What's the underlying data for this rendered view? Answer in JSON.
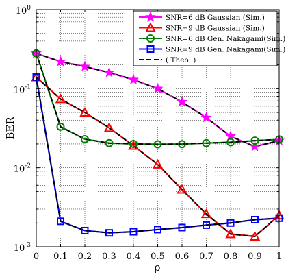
{
  "chart_data": {
    "type": "line",
    "xlabel": "ρ",
    "ylabel": "BER",
    "xlim": [
      0,
      1
    ],
    "ylim": [
      0.001,
      1
    ],
    "yscale": "log",
    "grid": true,
    "legend_position": "top-right",
    "x_ticks": [
      "0",
      "0.1",
      "0.2",
      "0.3",
      "0.4",
      "0.5",
      "0.6",
      "0.7",
      "0.8",
      "0.9",
      "1"
    ],
    "y_ticks": [
      {
        "base": "10",
        "exp": "0",
        "value": 1
      },
      {
        "base": "10",
        "exp": "-1",
        "value": 0.1
      },
      {
        "base": "10",
        "exp": "-2",
        "value": 0.01
      },
      {
        "base": "10",
        "exp": "-3",
        "value": 0.001
      }
    ],
    "x": [
      0,
      0.1,
      0.2,
      0.3,
      0.4,
      0.5,
      0.6,
      0.7,
      0.8,
      0.9,
      1.0
    ],
    "series": [
      {
        "name": "SNR=6 dB Gaussian (Sim.)",
        "color": "#ff00ff",
        "marker": "star",
        "values": [
          0.28,
          0.22,
          0.19,
          0.16,
          0.13,
          0.1,
          0.068,
          0.043,
          0.025,
          0.0185,
          0.022
        ]
      },
      {
        "name": "SNR=9 dB Gaussian (Sim.)",
        "color": "#ff0000",
        "marker": "triangle",
        "values": [
          0.14,
          0.074,
          0.05,
          0.032,
          0.019,
          0.011,
          0.0053,
          0.0026,
          0.00145,
          0.00135,
          0.0025
        ]
      },
      {
        "name": "SNR=6 dB Gen. Nakagami(Sim.)",
        "color": "#008000",
        "marker": "circle",
        "values": [
          0.28,
          0.033,
          0.023,
          0.0205,
          0.02,
          0.0198,
          0.0199,
          0.0205,
          0.021,
          0.022,
          0.0228
        ]
      },
      {
        "name": "SNR=9 dB Gen. Nakagami(Sim.)",
        "color": "#0000ff",
        "marker": "square",
        "values": [
          0.14,
          0.0021,
          0.0016,
          0.0015,
          0.00155,
          0.00165,
          0.00175,
          0.00188,
          0.002,
          0.0022,
          0.0023
        ]
      },
      {
        "name": "( Theo. )",
        "color": "#000000",
        "marker": "none",
        "dashed": true,
        "theory_of": [
          0,
          1,
          2,
          3
        ]
      }
    ]
  }
}
